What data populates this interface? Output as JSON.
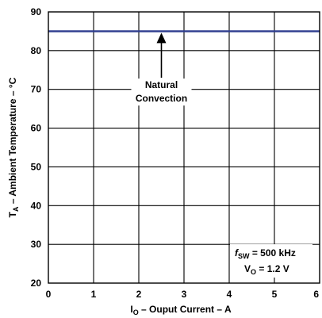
{
  "chart_data": {
    "type": "line",
    "xlabel": {
      "main": "I",
      "sub": "O",
      "rest": " – Ouput Current  – A"
    },
    "ylabel": {
      "main": "T",
      "sub": "A",
      "rest": " – Ambient Temperature – °C"
    },
    "xlim": [
      0,
      6
    ],
    "ylim": [
      20,
      90
    ],
    "x_ticks": [
      0,
      1,
      2,
      3,
      4,
      5,
      6
    ],
    "y_ticks": [
      20,
      30,
      40,
      50,
      60,
      70,
      80,
      90
    ],
    "grid": true,
    "series": [
      {
        "name": "Natural Convection",
        "color": "#2e3d8f",
        "x": [
          0,
          6
        ],
        "y": [
          85,
          85
        ]
      }
    ],
    "annotation": {
      "lines": [
        "Natural",
        "Convection"
      ],
      "arrow_x": 2.5,
      "arrow_y_from": 73,
      "arrow_y_to": 85
    },
    "conditions": {
      "line1": {
        "italic": "f",
        "sub": "SW",
        "rest": " = 500 kHz"
      },
      "line2": {
        "main": "V",
        "sub": "O",
        "rest": " = 1.2 V"
      }
    }
  }
}
